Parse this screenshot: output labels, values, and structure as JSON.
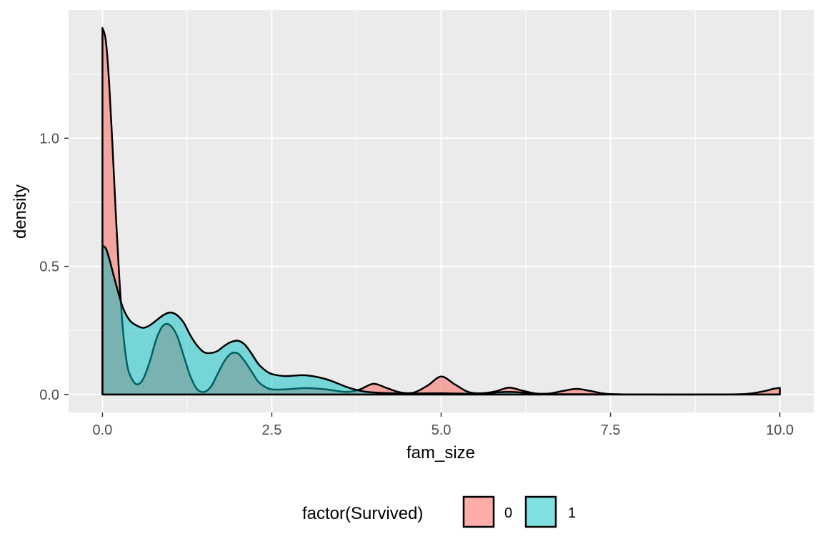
{
  "chart_data": {
    "type": "area",
    "subtype": "density",
    "xlabel": "fam_size",
    "ylabel": "density",
    "xlim": [
      -0.5,
      10.5
    ],
    "ylim": [
      -0.07,
      1.5
    ],
    "x_ticks": [
      0,
      2.5,
      5,
      7.5,
      10
    ],
    "x_tick_labels": [
      "0.0",
      "2.5",
      "5.0",
      "7.5",
      "10.0"
    ],
    "y_ticks": [
      0,
      0.5,
      1
    ],
    "y_tick_labels": [
      "0.0",
      "0.5",
      "1.0"
    ],
    "grid": true,
    "legend": {
      "title": "factor(Survived)",
      "position": "bottom",
      "entries": [
        {
          "label": "0",
          "color": "#F8766D"
        },
        {
          "label": "1",
          "color": "#00BFC4"
        }
      ]
    },
    "series": [
      {
        "name": "0",
        "color": "#F8766D",
        "fill_opacity": 0.6,
        "x": [
          0,
          0.05,
          0.1,
          0.15,
          0.2,
          0.25,
          0.3,
          0.35,
          0.4,
          0.5,
          0.6,
          0.7,
          0.8,
          0.9,
          1.0,
          1.1,
          1.2,
          1.3,
          1.4,
          1.5,
          1.6,
          1.7,
          1.8,
          1.9,
          2.0,
          2.1,
          2.2,
          2.3,
          2.4,
          2.5,
          2.7,
          3.0,
          3.3,
          3.6,
          3.8,
          4.0,
          4.2,
          4.4,
          4.6,
          4.8,
          5.0,
          5.2,
          5.4,
          5.6,
          5.8,
          6.0,
          6.2,
          6.4,
          6.6,
          6.8,
          7.0,
          7.2,
          7.4,
          7.6,
          8.0,
          9.0,
          9.4,
          9.6,
          9.8,
          9.9,
          10.0
        ],
        "y": [
          1.43,
          1.38,
          1.21,
          0.96,
          0.69,
          0.45,
          0.26,
          0.14,
          0.08,
          0.04,
          0.06,
          0.13,
          0.22,
          0.27,
          0.27,
          0.23,
          0.15,
          0.07,
          0.02,
          0.01,
          0.03,
          0.08,
          0.13,
          0.16,
          0.16,
          0.13,
          0.09,
          0.05,
          0.03,
          0.02,
          0.02,
          0.025,
          0.02,
          0.01,
          0.02,
          0.042,
          0.025,
          0.008,
          0.008,
          0.035,
          0.07,
          0.04,
          0.01,
          0.005,
          0.012,
          0.027,
          0.015,
          0.004,
          0.004,
          0.014,
          0.022,
          0.014,
          0.004,
          0.001,
          0.0,
          0.0,
          0.001,
          0.005,
          0.015,
          0.022,
          0.026
        ]
      },
      {
        "name": "1",
        "color": "#00BFC4",
        "fill_opacity": 0.5,
        "x": [
          0,
          0.05,
          0.1,
          0.2,
          0.3,
          0.4,
          0.5,
          0.6,
          0.7,
          0.8,
          0.9,
          1.0,
          1.1,
          1.2,
          1.3,
          1.4,
          1.5,
          1.6,
          1.7,
          1.8,
          1.9,
          2.0,
          2.1,
          2.2,
          2.3,
          2.4,
          2.5,
          2.7,
          3.0,
          3.3,
          3.6,
          3.8,
          4.0,
          4.5,
          5.0,
          5.5,
          6.0,
          6.5,
          7.0,
          8.0,
          9.0,
          10.0
        ],
        "y": [
          0.58,
          0.57,
          0.53,
          0.43,
          0.34,
          0.29,
          0.27,
          0.26,
          0.27,
          0.29,
          0.31,
          0.32,
          0.31,
          0.28,
          0.23,
          0.19,
          0.165,
          0.162,
          0.17,
          0.19,
          0.205,
          0.21,
          0.195,
          0.16,
          0.12,
          0.095,
          0.08,
          0.072,
          0.075,
          0.06,
          0.03,
          0.015,
          0.008,
          0.004,
          0.005,
          0.003,
          0.01,
          0.002,
          0.001,
          0.0,
          0.0,
          0.0
        ]
      }
    ]
  }
}
